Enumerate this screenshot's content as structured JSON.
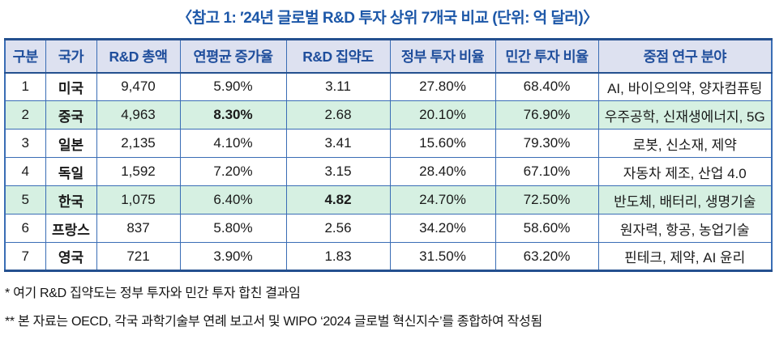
{
  "page": {
    "title": "〈참고 1: ′24년 글로벌 R&D 투자 상위 7개국 비교 (단위: 억 달러)〉"
  },
  "colors": {
    "title_text": "#1c57a8",
    "header_bg": "#dde1f0",
    "header_text": "#1f4e9c",
    "highlight_row_bg": "#d6f0e2",
    "inner_border": "#3a6db5",
    "outer_border": "#24508f",
    "body_text": "#1a1a1a"
  },
  "table": {
    "column_keys": [
      "rank",
      "country",
      "rd-total",
      "avg-growth-rate",
      "rd-intensity",
      "gov-invest-ratio",
      "private-invest-ratio",
      "focus-areas"
    ],
    "columns": [
      "구분",
      "국가",
      "R&D 총액",
      "연평균 증가율",
      "R&D 집약도",
      "정부 투자 비율",
      "민간 투자 비율",
      "중점 연구 분야"
    ],
    "rows": [
      {
        "cells": [
          "1",
          "미국",
          "9,470",
          "5.90%",
          "3.11",
          "27.80%",
          "68.40%",
          "AI, 바이오의약, 양자컴퓨팅"
        ],
        "highlight": false,
        "bold_cells": []
      },
      {
        "cells": [
          "2",
          "중국",
          "4,963",
          "8.30%",
          "2.68",
          "20.10%",
          "76.90%",
          "우주공학, 신재생에너지, 5G"
        ],
        "highlight": true,
        "bold_cells": [
          3
        ]
      },
      {
        "cells": [
          "3",
          "일본",
          "2,135",
          "4.10%",
          "3.41",
          "15.60%",
          "79.30%",
          "로봇, 신소재, 제약"
        ],
        "highlight": false,
        "bold_cells": []
      },
      {
        "cells": [
          "4",
          "독일",
          "1,592",
          "7.20%",
          "3.15",
          "28.40%",
          "67.10%",
          "자동차 제조, 산업 4.0"
        ],
        "highlight": false,
        "bold_cells": []
      },
      {
        "cells": [
          "5",
          "한국",
          "1,075",
          "6.40%",
          "4.82",
          "24.70%",
          "72.50%",
          "반도체, 배터리, 생명기술"
        ],
        "highlight": true,
        "bold_cells": [
          4
        ]
      },
      {
        "cells": [
          "6",
          "프랑스",
          "837",
          "5.80%",
          "2.56",
          "34.20%",
          "58.60%",
          "원자력, 항공, 농업기술"
        ],
        "highlight": false,
        "bold_cells": []
      },
      {
        "cells": [
          "7",
          "영국",
          "721",
          "3.90%",
          "1.83",
          "31.50%",
          "63.20%",
          "핀테크, 제약, AI 윤리"
        ],
        "highlight": false,
        "bold_cells": []
      }
    ]
  },
  "footnotes": [
    "* 여기 R&D 집약도는 정부 투자와 민간 투자 합친 결과임",
    "** 본 자료는 OECD, 각국 과학기술부 연례 보고서 및 WIPO ‘2024 글로벌 혁신지수’를 종합하여 작성됨"
  ]
}
